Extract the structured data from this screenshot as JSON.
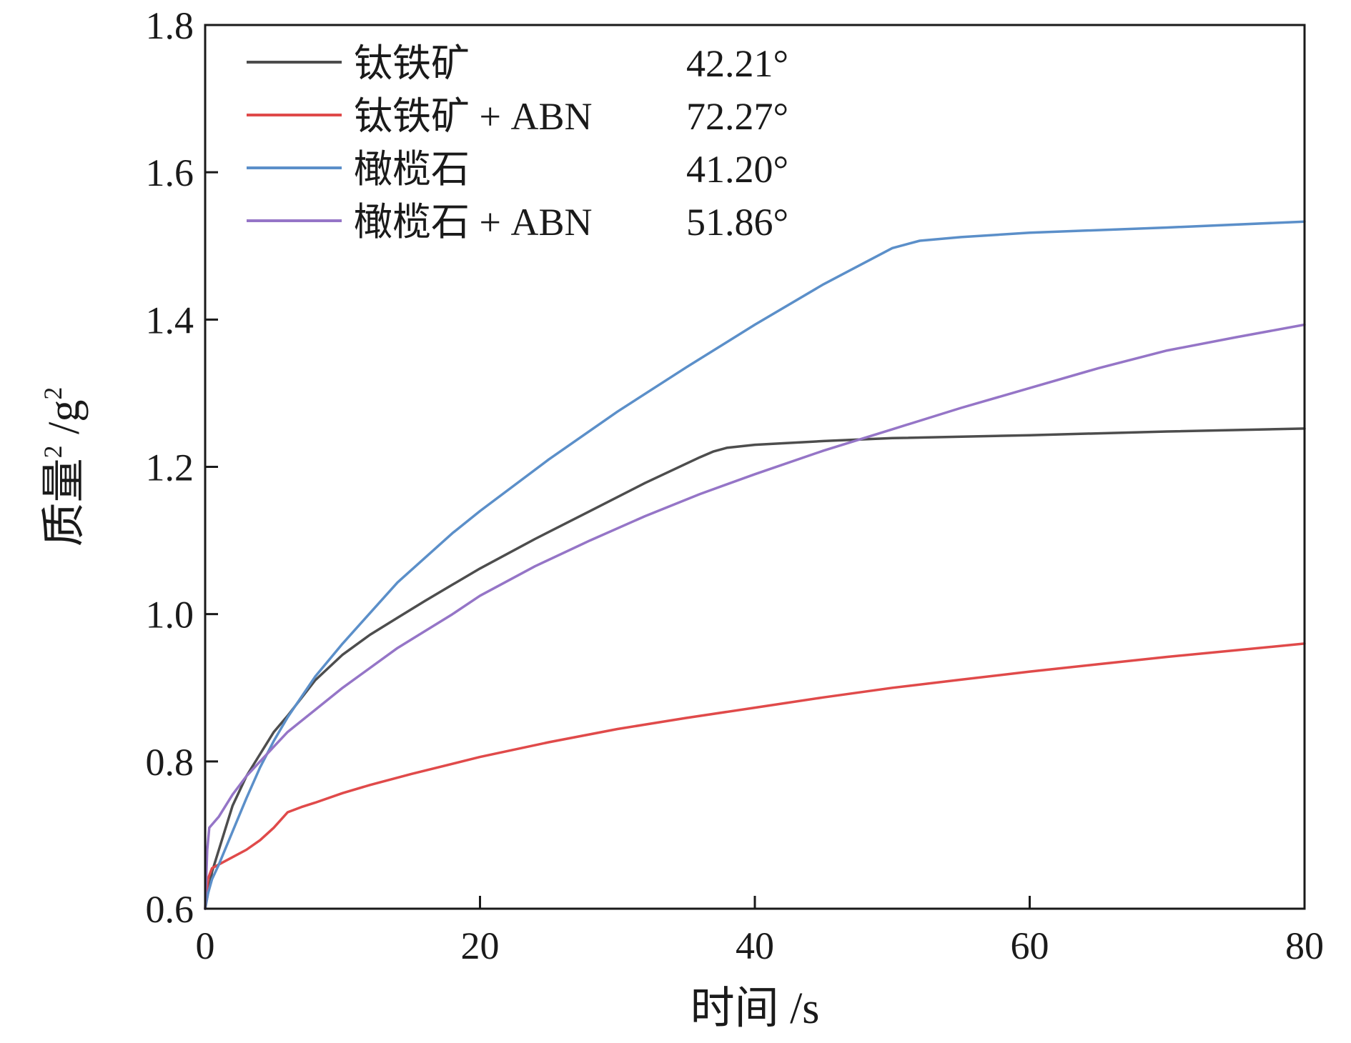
{
  "chart_data": {
    "type": "line",
    "xlabel": "时间 /s",
    "ylabel_base": "质量",
    "ylabel_sup": "2",
    "ylabel_unit": " /g",
    "ylabel_unit_sup": "2",
    "xlim": [
      0,
      80
    ],
    "ylim": [
      0.6,
      1.8
    ],
    "xticks": [
      0,
      20,
      40,
      60,
      80
    ],
    "yticks": [
      0.6,
      0.8,
      1.0,
      1.2,
      1.4,
      1.6,
      1.8
    ],
    "xtick_labels": [
      "0",
      "20",
      "40",
      "60",
      "80"
    ],
    "ytick_labels": [
      "0.6",
      "0.8",
      "1.0",
      "1.2",
      "1.4",
      "1.6",
      "1.8"
    ],
    "grid": false,
    "legend_position": "top-left",
    "series": [
      {
        "name": "钛铁矿",
        "annotation": "42.21°",
        "color": "#4d4d4d",
        "points": [
          [
            0,
            0.6
          ],
          [
            0.2,
            0.62
          ],
          [
            0.5,
            0.65
          ],
          [
            1,
            0.68
          ],
          [
            2,
            0.74
          ],
          [
            3,
            0.78
          ],
          [
            4,
            0.81
          ],
          [
            5,
            0.84
          ],
          [
            6,
            0.862
          ],
          [
            8,
            0.91
          ],
          [
            10,
            0.945
          ],
          [
            12,
            0.972
          ],
          [
            14,
            0.995
          ],
          [
            16,
            1.018
          ],
          [
            18,
            1.04
          ],
          [
            20,
            1.062
          ],
          [
            24,
            1.102
          ],
          [
            28,
            1.14
          ],
          [
            32,
            1.178
          ],
          [
            36,
            1.213
          ],
          [
            37,
            1.221
          ],
          [
            38,
            1.226
          ],
          [
            40,
            1.23
          ],
          [
            45,
            1.235
          ],
          [
            50,
            1.239
          ],
          [
            60,
            1.243
          ],
          [
            70,
            1.248
          ],
          [
            80,
            1.252
          ]
        ]
      },
      {
        "name": "钛铁矿 + ABN",
        "annotation": "72.27°",
        "color": "#e04a4a",
        "points": [
          [
            0,
            0.6
          ],
          [
            0.2,
            0.64
          ],
          [
            0.5,
            0.655
          ],
          [
            1,
            0.66
          ],
          [
            2,
            0.67
          ],
          [
            3,
            0.68
          ],
          [
            4,
            0.693
          ],
          [
            5,
            0.71
          ],
          [
            6,
            0.731
          ],
          [
            7,
            0.738
          ],
          [
            8,
            0.744
          ],
          [
            10,
            0.757
          ],
          [
            12,
            0.768
          ],
          [
            15,
            0.783
          ],
          [
            20,
            0.806
          ],
          [
            25,
            0.826
          ],
          [
            30,
            0.844
          ],
          [
            35,
            0.859
          ],
          [
            40,
            0.873
          ],
          [
            45,
            0.887
          ],
          [
            50,
            0.9
          ],
          [
            55,
            0.911
          ],
          [
            60,
            0.922
          ],
          [
            65,
            0.932
          ],
          [
            70,
            0.942
          ],
          [
            75,
            0.951
          ],
          [
            80,
            0.96
          ]
        ]
      },
      {
        "name": "橄榄石",
        "annotation": "41.20°",
        "color": "#5b8fc9",
        "points": [
          [
            0,
            0.6
          ],
          [
            0.2,
            0.62
          ],
          [
            0.5,
            0.64
          ],
          [
            1,
            0.66
          ],
          [
            2,
            0.705
          ],
          [
            3,
            0.75
          ],
          [
            4,
            0.792
          ],
          [
            5,
            0.828
          ],
          [
            6,
            0.86
          ],
          [
            8,
            0.915
          ],
          [
            10,
            0.96
          ],
          [
            14,
            1.043
          ],
          [
            18,
            1.11
          ],
          [
            20,
            1.14
          ],
          [
            25,
            1.21
          ],
          [
            30,
            1.275
          ],
          [
            35,
            1.335
          ],
          [
            40,
            1.393
          ],
          [
            45,
            1.448
          ],
          [
            50,
            1.497
          ],
          [
            52,
            1.507
          ],
          [
            55,
            1.512
          ],
          [
            60,
            1.518
          ],
          [
            70,
            1.525
          ],
          [
            80,
            1.533
          ]
        ]
      },
      {
        "name": "橄榄石 + ABN",
        "annotation": "51.86°",
        "color": "#9575c7",
        "points": [
          [
            0,
            0.6
          ],
          [
            0.15,
            0.68
          ],
          [
            0.3,
            0.71
          ],
          [
            1,
            0.725
          ],
          [
            2,
            0.755
          ],
          [
            3,
            0.78
          ],
          [
            4,
            0.8
          ],
          [
            5,
            0.82
          ],
          [
            6,
            0.84
          ],
          [
            8,
            0.87
          ],
          [
            10,
            0.9
          ],
          [
            14,
            0.954
          ],
          [
            18,
            1.0
          ],
          [
            20,
            1.025
          ],
          [
            24,
            1.065
          ],
          [
            28,
            1.1
          ],
          [
            32,
            1.133
          ],
          [
            36,
            1.163
          ],
          [
            40,
            1.19
          ],
          [
            45,
            1.222
          ],
          [
            50,
            1.251
          ],
          [
            55,
            1.28
          ],
          [
            60,
            1.307
          ],
          [
            65,
            1.334
          ],
          [
            70,
            1.358
          ],
          [
            75,
            1.376
          ],
          [
            80,
            1.393
          ]
        ]
      }
    ]
  }
}
